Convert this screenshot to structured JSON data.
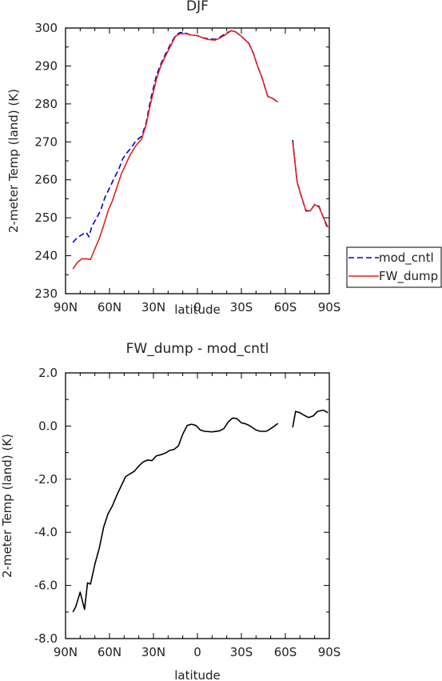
{
  "chart_data": [
    {
      "type": "line",
      "title": "DJF",
      "xlabel": "latitude",
      "ylabel": "2-meter Temp (land) (K)",
      "xlim": [
        90,
        -90
      ],
      "ylim": [
        230,
        300
      ],
      "xticks": [
        90,
        60,
        30,
        0,
        -30,
        -60,
        -90
      ],
      "xtick_labels": [
        "90N",
        "60N",
        "30N",
        "0",
        "30S",
        "60S",
        "90S"
      ],
      "yticks": [
        230,
        240,
        250,
        260,
        270,
        280,
        290,
        300
      ],
      "ytick_labels": [
        "230",
        "240",
        "250",
        "260",
        "270",
        "280",
        "290",
        "300"
      ],
      "legend_position": "right",
      "series": [
        {
          "name": "mod_cntl",
          "color": "#0000cc",
          "dash": "dashed",
          "segments": [
            [
              [
                85,
                243.5
              ],
              [
                82,
                244.8
              ],
              [
                79,
                245.5
              ],
              [
                76,
                246.2
              ],
              [
                74,
                245.0
              ],
              [
                72,
                247.8
              ],
              [
                69,
                249.8
              ],
              [
                66,
                252.0
              ],
              [
                63,
                255.5
              ],
              [
                60,
                257.8
              ],
              [
                57,
                260.3
              ],
              [
                54,
                262.5
              ],
              [
                51,
                265.5
              ],
              [
                48,
                267.2
              ],
              [
                45,
                268.5
              ],
              [
                42,
                270.3
              ],
              [
                38,
                271.5
              ],
              [
                35,
                275.0
              ],
              [
                32,
                281.0
              ],
              [
                28,
                287.5
              ],
              [
                25,
                290.5
              ],
              [
                22,
                293.0
              ],
              [
                18,
                296.0
              ],
              [
                15,
                298.0
              ],
              [
                12,
                298.8
              ],
              [
                9,
                298.8
              ],
              [
                5,
                298.2
              ],
              [
                0,
                298.0
              ],
              [
                -3,
                297.5
              ],
              [
                -7,
                297.2
              ],
              [
                -12,
                297.0
              ],
              [
                -15,
                297.5
              ],
              [
                -19,
                298.5
              ],
              [
                -23,
                299.3
              ],
              [
                -26,
                299.0
              ],
              [
                -30,
                297.8
              ],
              [
                -35,
                296.0
              ],
              [
                -38,
                293.5
              ],
              [
                -41,
                290.0
              ],
              [
                -44,
                287.0
              ],
              [
                -48,
                282.0
              ],
              [
                -51,
                281.5
              ],
              [
                -55,
                280.5
              ]
            ],
            [
              [
                -65,
                270.5
              ],
              [
                -68,
                259.5
              ],
              [
                -71,
                255.5
              ],
              [
                -74,
                251.8
              ],
              [
                -77,
                251.8
              ],
              [
                -80,
                253.5
              ],
              [
                -83,
                253.0
              ],
              [
                -86,
                250.0
              ],
              [
                -89,
                247.0
              ]
            ]
          ]
        },
        {
          "name": "FW_dump",
          "color": "#e02020",
          "dash": "solid",
          "segments": [
            [
              [
                85,
                236.5
              ],
              [
                82,
                238.2
              ],
              [
                79,
                239.2
              ],
              [
                76,
                239.2
              ],
              [
                73,
                239.0
              ],
              [
                70,
                241.8
              ],
              [
                67,
                244.5
              ],
              [
                64,
                248.0
              ],
              [
                61,
                251.8
              ],
              [
                58,
                254.5
              ],
              [
                55,
                258.0
              ],
              [
                52,
                261.5
              ],
              [
                49,
                264.0
              ],
              [
                46,
                266.5
              ],
              [
                42,
                269.0
              ],
              [
                38,
                270.8
              ],
              [
                35,
                274.5
              ],
              [
                32,
                280.0
              ],
              [
                28,
                286.5
              ],
              [
                25,
                290.0
              ],
              [
                22,
                292.5
              ],
              [
                18,
                295.5
              ],
              [
                15,
                297.8
              ],
              [
                12,
                298.5
              ],
              [
                8,
                298.5
              ],
              [
                5,
                298.2
              ],
              [
                0,
                298.0
              ],
              [
                -3,
                297.5
              ],
              [
                -7,
                297.0
              ],
              [
                -12,
                296.8
              ],
              [
                -15,
                297.3
              ],
              [
                -19,
                298.2
              ],
              [
                -23,
                299.3
              ],
              [
                -26,
                299.0
              ],
              [
                -30,
                297.8
              ],
              [
                -35,
                296.0
              ],
              [
                -38,
                293.5
              ],
              [
                -41,
                290.0
              ],
              [
                -44,
                287.0
              ],
              [
                -48,
                282.0
              ],
              [
                -51,
                281.5
              ],
              [
                -55,
                280.5
              ]
            ],
            [
              [
                -65,
                270.0
              ],
              [
                -68,
                259.5
              ],
              [
                -71,
                255.5
              ],
              [
                -74,
                252.0
              ],
              [
                -77,
                251.8
              ],
              [
                -80,
                253.5
              ],
              [
                -83,
                252.8
              ],
              [
                -86,
                250.0
              ],
              [
                -89,
                247.5
              ]
            ]
          ]
        }
      ]
    },
    {
      "type": "line",
      "title": "FW_dump - mod_cntl",
      "xlabel": "latitude",
      "ylabel": "2-meter Temp (land) (K)",
      "xlim": [
        90,
        -90
      ],
      "ylim": [
        -8,
        2
      ],
      "xticks": [
        90,
        60,
        30,
        0,
        -30,
        -60,
        -90
      ],
      "xtick_labels": [
        "90N",
        "60N",
        "30N",
        "0",
        "30S",
        "60S",
        "90S"
      ],
      "yticks": [
        -8,
        -6,
        -4,
        -2,
        0,
        2
      ],
      "ytick_labels": [
        "-8.0",
        "-6.0",
        "-4.0",
        "-2.0",
        "0.0",
        "2.0"
      ],
      "series": [
        {
          "color": "#000000",
          "dash": "solid",
          "segments": [
            [
              [
                85,
                -7.0
              ],
              [
                83,
                -6.8
              ],
              [
                80,
                -6.25
              ],
              [
                77,
                -6.9
              ],
              [
                75,
                -5.9
              ],
              [
                73,
                -5.95
              ],
              [
                70,
                -5.2
              ],
              [
                67,
                -4.6
              ],
              [
                64,
                -3.8
              ],
              [
                61,
                -3.3
              ],
              [
                58,
                -3.0
              ],
              [
                55,
                -2.6
              ],
              [
                52,
                -2.25
              ],
              [
                49,
                -1.9
              ],
              [
                46,
                -1.8
              ],
              [
                43,
                -1.7
              ],
              [
                40,
                -1.5
              ],
              [
                37,
                -1.35
              ],
              [
                34,
                -1.28
              ],
              [
                31,
                -1.3
              ],
              [
                28,
                -1.12
              ],
              [
                25,
                -1.08
              ],
              [
                22,
                -1.02
              ],
              [
                19,
                -0.92
              ],
              [
                16,
                -0.88
              ],
              [
                13,
                -0.75
              ],
              [
                10,
                -0.3
              ],
              [
                7,
                0.02
              ],
              [
                4,
                0.07
              ],
              [
                1,
                0.02
              ],
              [
                -2,
                -0.15
              ],
              [
                -5,
                -0.2
              ],
              [
                -10,
                -0.22
              ],
              [
                -15,
                -0.18
              ],
              [
                -18,
                -0.1
              ],
              [
                -21,
                0.15
              ],
              [
                -24,
                0.3
              ],
              [
                -27,
                0.28
              ],
              [
                -30,
                0.12
              ],
              [
                -33,
                0.08
              ],
              [
                -36,
                0.0
              ],
              [
                -40,
                -0.15
              ],
              [
                -43,
                -0.2
              ],
              [
                -47,
                -0.2
              ],
              [
                -50,
                -0.1
              ],
              [
                -55,
                0.1
              ]
            ],
            [
              [
                -65,
                -0.05
              ],
              [
                -67,
                0.55
              ],
              [
                -70,
                0.5
              ],
              [
                -73,
                0.4
              ],
              [
                -76,
                0.32
              ],
              [
                -79,
                0.38
              ],
              [
                -82,
                0.55
              ],
              [
                -86,
                0.6
              ],
              [
                -89,
                0.5
              ]
            ]
          ]
        }
      ]
    }
  ]
}
